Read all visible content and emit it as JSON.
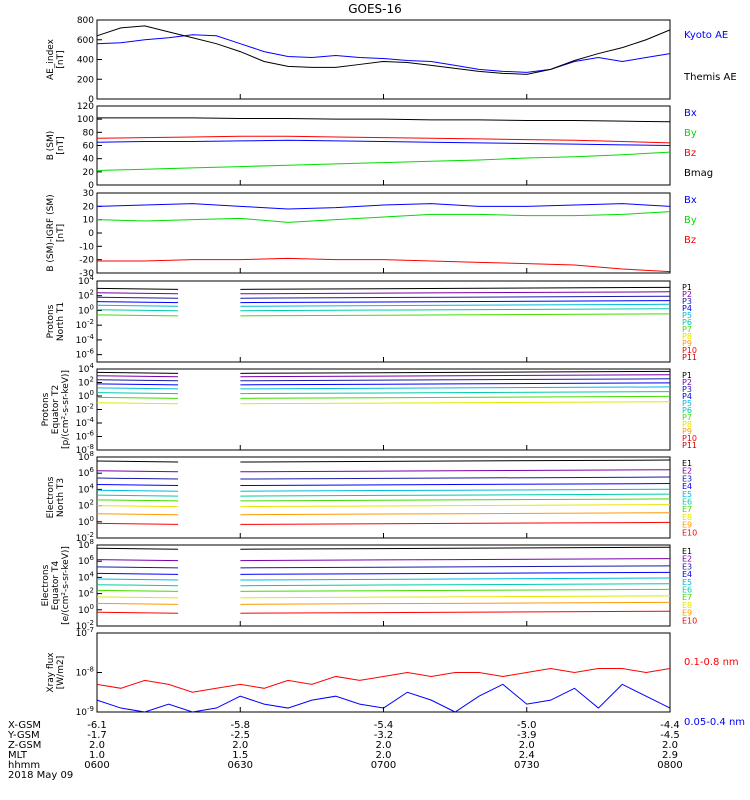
{
  "title": "GOES-16",
  "date_label": "2018 May 09",
  "colors": {
    "black": "#000000",
    "blue": "#0000ff",
    "green": "#00dd00",
    "red": "#ff0000",
    "purple": "#7a00aa",
    "darkblue": "#1a1aaa",
    "cyan": "#00bbdd",
    "teal": "#00ccaa",
    "lime": "#44dd00",
    "yellow": "#e6e600",
    "orange": "#ff9900",
    "darkred": "#cc0000"
  },
  "chart_data": [
    {
      "type": "line",
      "ylabel": [
        "AE_index",
        "[nT]"
      ],
      "ylim": [
        0,
        800
      ],
      "yticks": [
        "0",
        "200",
        "400",
        "600",
        "800"
      ],
      "x": [
        "0600",
        "0605",
        "0610",
        "0615",
        "0620",
        "0625",
        "0630",
        "0635",
        "0640",
        "0645",
        "0650",
        "0655",
        "0700",
        "0705",
        "0710",
        "0715",
        "0720",
        "0725",
        "0730",
        "0735",
        "0740",
        "0745",
        "0750",
        "0755",
        "0800"
      ],
      "series": [
        {
          "name": "Kyoto AE",
          "color": "#0000ff",
          "values": [
            560,
            570,
            600,
            620,
            650,
            640,
            560,
            480,
            430,
            420,
            440,
            420,
            410,
            390,
            380,
            340,
            300,
            280,
            270,
            300,
            380,
            420,
            380,
            420,
            460
          ]
        },
        {
          "name": "Themis AE",
          "color": "#000000",
          "values": [
            640,
            720,
            740,
            680,
            620,
            560,
            480,
            380,
            330,
            320,
            320,
            350,
            380,
            370,
            340,
            310,
            280,
            260,
            250,
            300,
            390,
            460,
            520,
            600,
            700
          ]
        }
      ]
    },
    {
      "type": "line",
      "ylabel": [
        "B (SM)",
        "[nT]"
      ],
      "ylim": [
        0,
        120
      ],
      "yticks": [
        "0",
        "20",
        "40",
        "60",
        "80",
        "100",
        "120"
      ],
      "x": [
        "0600",
        "0610",
        "0620",
        "0630",
        "0640",
        "0650",
        "0700",
        "0710",
        "0720",
        "0730",
        "0740",
        "0750",
        "0800"
      ],
      "series": [
        {
          "name": "Bx",
          "color": "#0000ff",
          "values": [
            65,
            66,
            66,
            67,
            68,
            67,
            66,
            65,
            64,
            63,
            62,
            61,
            60
          ]
        },
        {
          "name": "By",
          "color": "#00dd00",
          "values": [
            22,
            24,
            26,
            28,
            30,
            32,
            34,
            36,
            38,
            41,
            43,
            46,
            50
          ]
        },
        {
          "name": "Bz",
          "color": "#ff0000",
          "values": [
            71,
            72,
            73,
            74,
            74,
            73,
            72,
            71,
            70,
            69,
            68,
            66,
            64
          ]
        },
        {
          "name": "Bmag",
          "color": "#000000",
          "values": [
            102,
            102,
            102,
            101,
            101,
            100,
            100,
            99,
            99,
            98,
            98,
            97,
            96
          ]
        }
      ]
    },
    {
      "type": "line",
      "ylabel": [
        "B (SM)-IGRF (SM)",
        "[nT]"
      ],
      "ylim": [
        -30,
        30
      ],
      "yticks": [
        "-30",
        "-20",
        "-10",
        "0",
        "10",
        "20",
        "30"
      ],
      "x": [
        "0600",
        "0610",
        "0620",
        "0630",
        "0640",
        "0650",
        "0700",
        "0710",
        "0720",
        "0730",
        "0740",
        "0750",
        "0800"
      ],
      "series": [
        {
          "name": "Bx",
          "color": "#0000ff",
          "values": [
            20,
            21,
            22,
            20,
            18,
            19,
            21,
            22,
            20,
            20,
            21,
            22,
            20
          ]
        },
        {
          "name": "By",
          "color": "#00dd00",
          "values": [
            10,
            9,
            10,
            11,
            8,
            10,
            12,
            14,
            14,
            13,
            13,
            14,
            16
          ]
        },
        {
          "name": "Bz",
          "color": "#ff0000",
          "values": [
            -21,
            -21,
            -20,
            -20,
            -19,
            -20,
            -20,
            -21,
            -22,
            -23,
            -24,
            -27,
            -29
          ]
        }
      ]
    },
    {
      "type": "line",
      "log": true,
      "ylabel": [
        "Protons",
        "North T1"
      ],
      "ylim_exp": [
        -7,
        4
      ],
      "yticks": [
        "10^4",
        "10^2",
        "10^0",
        "10^-2",
        "10^-4",
        "10^-6"
      ],
      "gap": [
        "0617",
        "0630"
      ],
      "channel_labels": [
        "P1",
        "P2",
        "P3",
        "P4",
        "P5",
        "P6",
        "P7",
        "P8",
        "P9",
        "P10",
        "P11"
      ],
      "series_exp": [
        3.0,
        2.4,
        1.8,
        1.2,
        0.7,
        0.1,
        -0.6,
        null,
        null,
        null,
        null
      ]
    },
    {
      "type": "line",
      "log": true,
      "ylabel": [
        "Protons",
        "Equator T2",
        "[p/(cm²-s-sr-keV)]"
      ],
      "ylim_exp": [
        -8,
        4
      ],
      "yticks": [
        "10^4",
        "10^2",
        "10^0",
        "10^-2",
        "10^-4",
        "10^-6",
        "10^-8"
      ],
      "gap": [
        "0617",
        "0630"
      ],
      "channel_labels": [
        "P1",
        "P2",
        "P3",
        "P4",
        "P5",
        "P6",
        "P7",
        "P8",
        "P9",
        "P10",
        "P11"
      ],
      "series_exp": [
        3.5,
        3.0,
        2.4,
        1.8,
        1.2,
        0.5,
        -0.2,
        -1.0,
        null,
        null,
        null
      ]
    },
    {
      "type": "line",
      "log": true,
      "ylabel": [
        "Electrons",
        "North T3"
      ],
      "ylim_exp": [
        -2,
        8
      ],
      "yticks": [
        "10^8",
        "10^6",
        "10^4",
        "10^2",
        "10^0",
        "10^-2"
      ],
      "gap": [
        "0617",
        "0630"
      ],
      "channel_labels": [
        "E1",
        "E2",
        "E3",
        "E4",
        "E5",
        "E6",
        "E7",
        "E8",
        "E9",
        "E10"
      ],
      "series_exp": [
        7.5,
        6.3,
        5.4,
        4.6,
        3.9,
        3.3,
        2.7,
        2.0,
        1.0,
        -0.2
      ]
    },
    {
      "type": "line",
      "log": true,
      "ylabel": [
        "Electrons",
        "Equator T4",
        "[e/(cm²-s-sr-keV)]"
      ],
      "ylim_exp": [
        -2,
        8
      ],
      "yticks": [
        "10^8",
        "10^6",
        "10^4",
        "10^2",
        "10^0",
        "10^-2"
      ],
      "gap": [
        "0617",
        "0630"
      ],
      "channel_labels": [
        "E1",
        "E2",
        "E3",
        "E4",
        "E5",
        "E6",
        "E7",
        "E8",
        "E9",
        "E10"
      ],
      "series_exp": [
        7.6,
        6.2,
        5.3,
        4.5,
        3.8,
        3.1,
        2.4,
        1.6,
        0.8,
        -0.3
      ]
    },
    {
      "type": "line",
      "log": true,
      "ylabel": [
        "Xray flux",
        "[W/m2]"
      ],
      "ylim_exp": [
        -9,
        -7
      ],
      "yticks": [
        "10^-7",
        "10^-8",
        "10^-9"
      ],
      "series": [
        {
          "name": "0.1-0.8 nm",
          "color": "#ff0000",
          "values_exp": [
            -8.3,
            -8.4,
            -8.2,
            -8.3,
            -8.5,
            -8.4,
            -8.3,
            -8.4,
            -8.2,
            -8.3,
            -8.1,
            -8.2,
            -8.1,
            -8.0,
            -8.1,
            -8.0,
            -8.0,
            -8.1,
            -8.0,
            -7.9,
            -8.0,
            -7.9,
            -7.9,
            -8.0,
            -7.9
          ]
        },
        {
          "name": "0.05-0.4 nm",
          "color": "#0000ff",
          "values_exp": [
            -8.7,
            -8.9,
            -9.0,
            -8.8,
            -9.0,
            -8.9,
            -8.6,
            -8.8,
            -8.9,
            -8.7,
            -8.6,
            -8.8,
            -8.9,
            -8.5,
            -8.7,
            -9.0,
            -8.6,
            -8.3,
            -8.8,
            -8.7,
            -8.4,
            -8.9,
            -8.3,
            -8.6,
            -8.9
          ]
        }
      ]
    }
  ],
  "xaxis": {
    "row_labels": [
      "X-GSM",
      "Y-GSM",
      "Z-GSM",
      "MLT",
      "hhmm"
    ],
    "columns": [
      [
        "-6.1",
        "-1.7",
        "2.0",
        "1.0",
        "0600"
      ],
      [
        "-5.8",
        "-2.5",
        "2.0",
        "1.5",
        "0630"
      ],
      [
        "-5.4",
        "-3.2",
        "2.0",
        "2.0",
        "0700"
      ],
      [
        "-5.0",
        "-3.9",
        "2.0",
        "2.4",
        "0730"
      ],
      [
        "-4.4",
        "-4.5",
        "2.0",
        "2.9",
        "0800"
      ]
    ]
  }
}
